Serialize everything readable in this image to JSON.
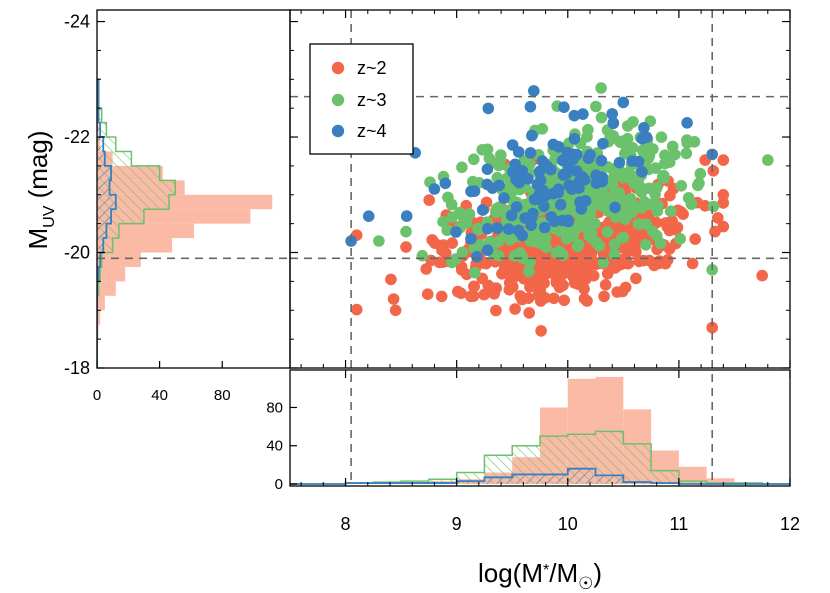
{
  "chart_data": {
    "type": "scatter",
    "title": "",
    "xlabel": "log(M*/M☉)",
    "ylabel": "MUV (mag)",
    "xlabel_parts": {
      "base": "log(M",
      "star": "*",
      "mid": "/M",
      "sun": "☉",
      "end": ")"
    },
    "ylabel_parts": {
      "base": "M",
      "sub": "UV",
      "unit": " (mag)"
    },
    "xlim": [
      7.5,
      12
    ],
    "ylim": [
      -18,
      -24.2
    ],
    "x_ticks": [
      "8",
      "9",
      "10",
      "11",
      "12"
    ],
    "y_ticks": [
      "-18",
      "-20",
      "-22",
      "-24"
    ],
    "reference_lines": {
      "x": [
        8.05,
        11.3
      ],
      "y": [
        -19.9,
        -22.7
      ]
    },
    "legend": {
      "position": "top-left",
      "entries": [
        "z~2",
        "z~3",
        "z~4"
      ]
    },
    "colors": {
      "z~2": "#f26649",
      "z~3": "#6cc26c",
      "z~4": "#3a80c0",
      "z~2_hist_fill": "#fbbaa6",
      "z~3_hist": "#6cc26c",
      "z~4_hist": "#3a80c0",
      "ref_line": "#666666"
    },
    "series": [
      {
        "name": "z~2",
        "distribution": {
          "x_mean": 10.0,
          "x_sd": 0.55,
          "y_mean": -20.2,
          "y_sd": 0.45,
          "n": 560
        }
      },
      {
        "name": "z~3",
        "distribution": {
          "x_mean": 10.0,
          "x_sd": 0.5,
          "y_mean": -21.0,
          "y_sd": 0.55,
          "n": 420
        }
      },
      {
        "name": "z~4",
        "distribution": {
          "x_mean": 9.9,
          "x_sd": 0.45,
          "y_mean": -21.3,
          "y_sd": 0.5,
          "n": 110
        }
      }
    ],
    "scatter_extra_points": [
      {
        "series": "z~2",
        "x": 8.1,
        "y": -20.3
      },
      {
        "series": "z~2",
        "x": 8.45,
        "y": -19.0
      },
      {
        "series": "z~2",
        "x": 11.75,
        "y": -19.6
      },
      {
        "series": "z~2",
        "x": 11.3,
        "y": -18.7
      },
      {
        "series": "z~2",
        "x": 11.35,
        "y": -20.6
      },
      {
        "series": "z~2",
        "x": 11.4,
        "y": -21.0
      },
      {
        "series": "z~3",
        "x": 11.8,
        "y": -21.6
      },
      {
        "series": "z~3",
        "x": 11.3,
        "y": -19.7
      },
      {
        "series": "z~3",
        "x": 10.3,
        "y": -22.85
      },
      {
        "series": "z~3",
        "x": 8.3,
        "y": -20.2
      },
      {
        "series": "z~4",
        "x": 8.05,
        "y": -20.2
      },
      {
        "series": "z~4",
        "x": 8.8,
        "y": -21.1
      },
      {
        "series": "z~4",
        "x": 10.5,
        "y": -22.6
      },
      {
        "series": "z~4",
        "x": 10.4,
        "y": -22.4
      },
      {
        "series": "z~4",
        "x": 11.3,
        "y": -21.7
      }
    ],
    "histogram_x": {
      "bin_edges": [
        7.5,
        7.75,
        8.0,
        8.25,
        8.5,
        8.75,
        9.0,
        9.25,
        9.5,
        9.75,
        10.0,
        10.25,
        10.5,
        10.75,
        11.0,
        11.25,
        11.5,
        11.75,
        12.0
      ],
      "z~2": [
        0,
        0,
        1,
        1,
        2,
        3,
        5,
        12,
        28,
        80,
        110,
        112,
        78,
        35,
        18,
        6,
        2,
        1
      ],
      "z~3": [
        0,
        0,
        1,
        2,
        3,
        5,
        12,
        30,
        40,
        50,
        52,
        55,
        42,
        14,
        3,
        1,
        1,
        0
      ],
      "z~4": [
        0,
        0,
        1,
        1,
        1,
        1,
        3,
        7,
        10,
        10,
        16,
        9,
        2,
        1,
        0,
        0,
        0,
        0
      ],
      "ylim": [
        0,
        115
      ],
      "y_ticks": [
        "0",
        "40",
        "80"
      ]
    },
    "histogram_y": {
      "bin_edges": [
        -18.0,
        -18.25,
        -18.5,
        -18.75,
        -19.0,
        -19.25,
        -19.5,
        -19.75,
        -20.0,
        -20.25,
        -20.5,
        -20.75,
        -21.0,
        -21.25,
        -21.5,
        -21.75,
        -22.0,
        -22.25,
        -22.5,
        -22.75,
        -23.0
      ],
      "z~2": [
        0,
        0,
        1,
        2,
        5,
        12,
        18,
        28,
        48,
        62,
        98,
        112,
        56,
        42,
        10,
        2,
        1,
        0,
        0,
        0
      ],
      "z~3": [
        0,
        0,
        0,
        0,
        0,
        1,
        2,
        3,
        10,
        14,
        30,
        46,
        50,
        40,
        22,
        12,
        6,
        3,
        1,
        0
      ],
      "z~4": [
        0,
        0,
        0,
        0,
        0,
        0,
        1,
        2,
        4,
        6,
        9,
        12,
        8,
        9,
        5,
        4,
        2,
        1,
        1,
        1
      ],
      "xlim": [
        0,
        115
      ],
      "x_ticks": [
        "0",
        "40",
        "80"
      ]
    }
  }
}
